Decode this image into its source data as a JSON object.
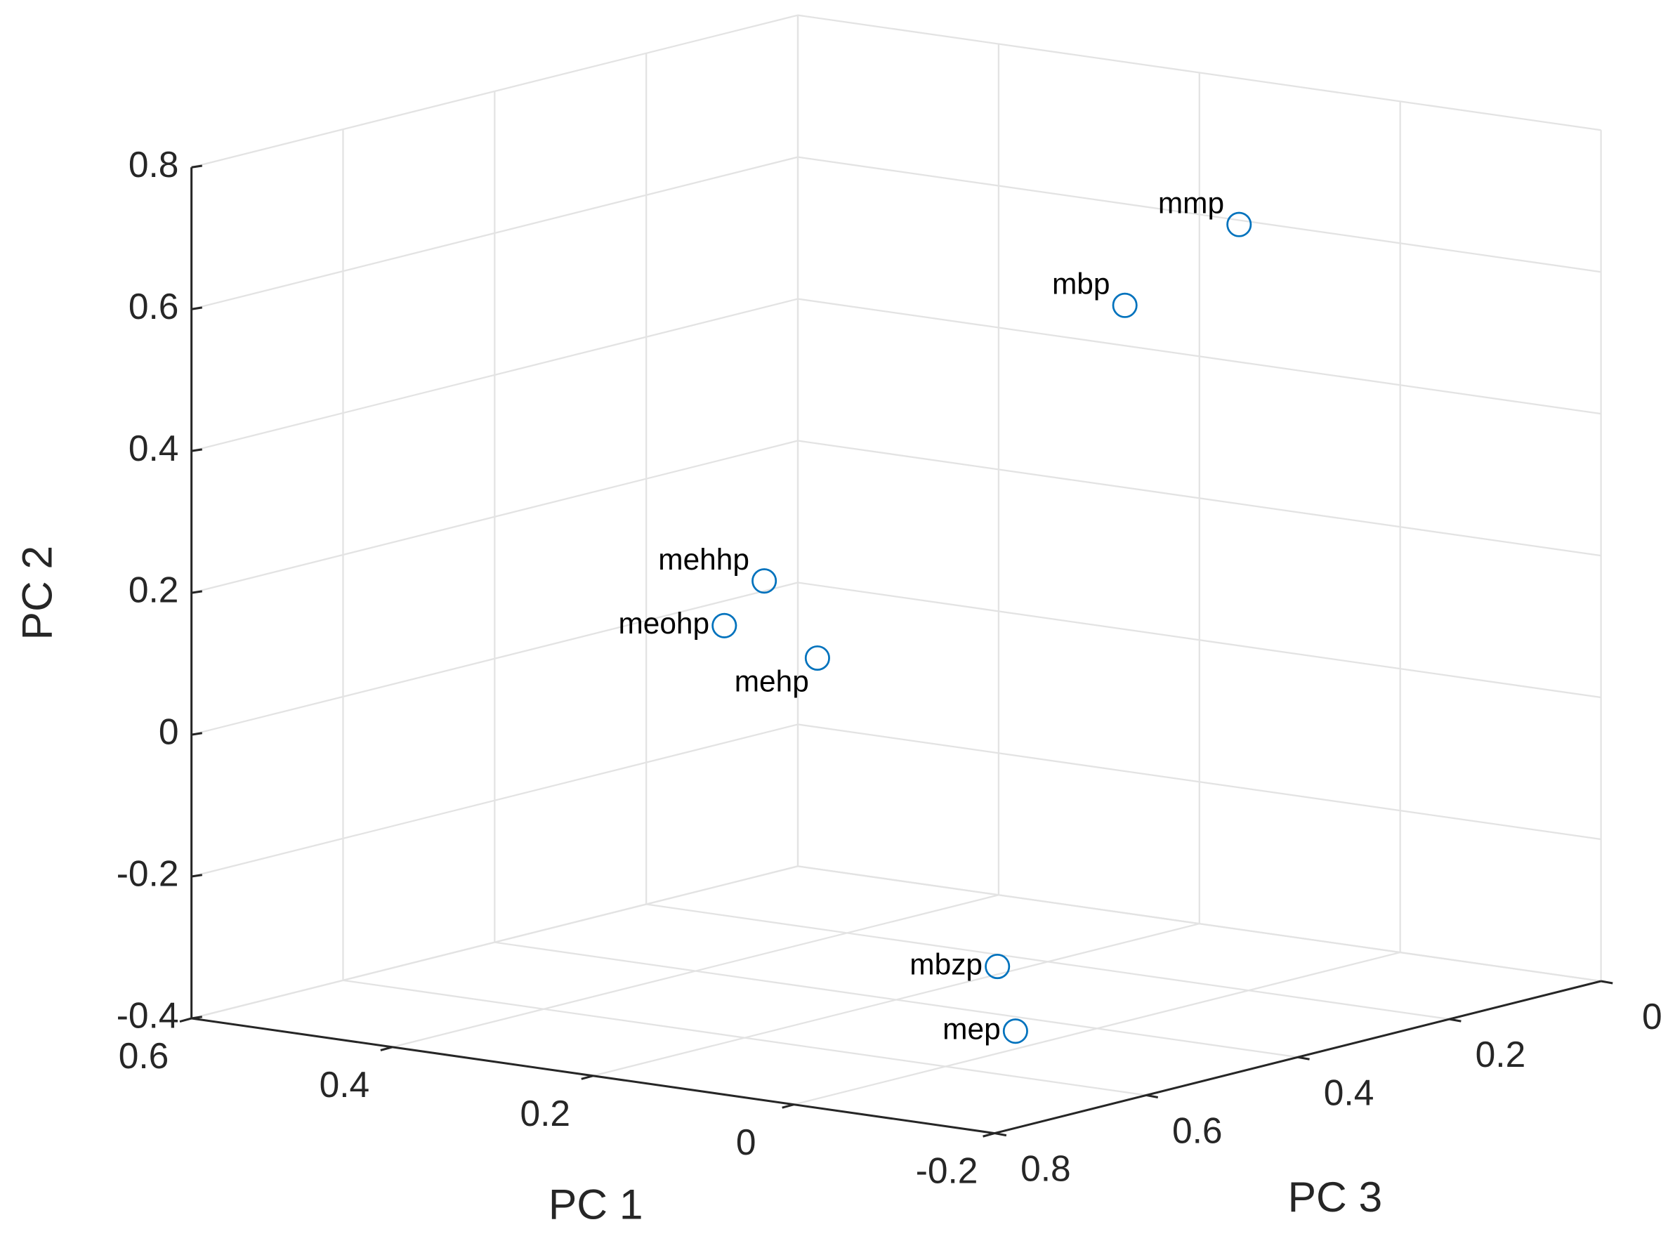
{
  "chart_data": {
    "type": "scatter3d",
    "xlabel": "PC 1",
    "ylabel": "PC 2",
    "zlabel": "PC 3",
    "labels": [
      "mmp",
      "mbp",
      "mehhp",
      "meohp",
      "mehp",
      "mbzp",
      "mep"
    ],
    "x": [
      0.085,
      0.161,
      0.256,
      0.258,
      0.203,
      0.22,
      0.045
    ],
    "y": [
      0.636,
      0.52,
      0.206,
      0.156,
      0.108,
      -0.4,
      -0.4
    ],
    "z": [
      0.1,
      0.15,
      0.5,
      0.55,
      0.5,
      0.24,
      0.448
    ],
    "color": "#0072bd",
    "xlim": [
      -0.2,
      0.6
    ],
    "ylim": [
      -0.4,
      0.8
    ],
    "zlim": [
      0,
      0.8
    ],
    "xticks": [
      -0.2,
      0,
      0.2,
      0.4,
      0.6
    ],
    "yticks": [
      -0.4,
      -0.2,
      0,
      0.2,
      0.4,
      0.6,
      0.8
    ],
    "zticks": [
      0,
      0.2,
      0.4,
      0.6,
      0.8
    ],
    "grid": true
  }
}
